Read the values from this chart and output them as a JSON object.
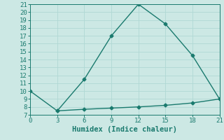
{
  "xlabel": "Humidex (Indice chaleur)",
  "line1_x": [
    0,
    3,
    6,
    9,
    12,
    15,
    18,
    21
  ],
  "line1_y": [
    10,
    7.5,
    11.5,
    17,
    21,
    18.5,
    14.5,
    9
  ],
  "line2_x": [
    3,
    6,
    9,
    12,
    15,
    18,
    21
  ],
  "line2_y": [
    7.5,
    7.7,
    7.85,
    8.0,
    8.2,
    8.5,
    9
  ],
  "line_color": "#1a7a6e",
  "bg_color": "#cce8e4",
  "grid_color": "#b0d8d4",
  "xlim": [
    0,
    21
  ],
  "ylim": [
    7,
    21
  ],
  "xticks": [
    0,
    3,
    6,
    9,
    12,
    15,
    18,
    21
  ],
  "yticks": [
    7,
    8,
    9,
    10,
    11,
    12,
    13,
    14,
    15,
    16,
    17,
    18,
    19,
    20,
    21
  ],
  "xlabel_fontsize": 7.5,
  "tick_fontsize": 6.5,
  "marker": "D",
  "marker_size": 2.5,
  "linewidth": 1.0
}
